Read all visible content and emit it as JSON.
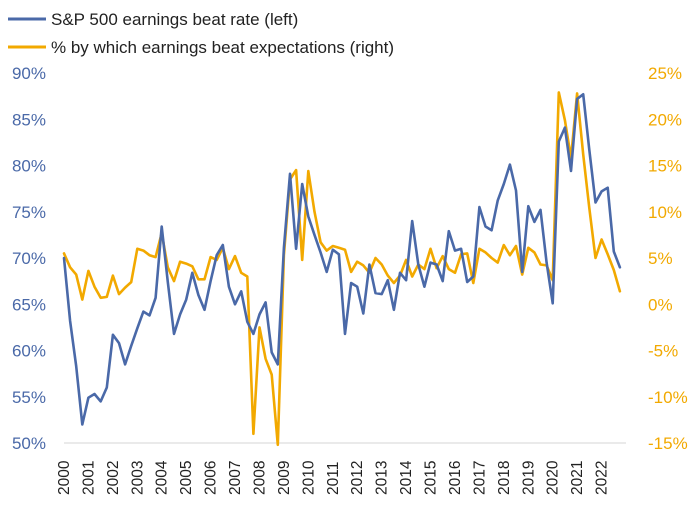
{
  "chart_data": {
    "type": "line",
    "x_labels": [
      "2000",
      "2001",
      "2002",
      "2003",
      "2004",
      "2005",
      "2006",
      "2007",
      "2008",
      "2009",
      "2010",
      "2011",
      "2012",
      "2013",
      "2014",
      "2015",
      "2016",
      "2017",
      "2018",
      "2019",
      "2020",
      "2021",
      "2022"
    ],
    "x_range": [
      2000,
      2023
    ],
    "y_left": {
      "ticks": [
        "90%",
        "85%",
        "80%",
        "75%",
        "70%",
        "65%",
        "60%",
        "55%",
        "50%"
      ],
      "range": [
        50,
        90
      ]
    },
    "y_right": {
      "ticks": [
        "25%",
        "20%",
        "15%",
        "10%",
        "5%",
        "0%",
        "-5%",
        "-10%",
        "-15%"
      ],
      "range": [
        -15,
        25
      ]
    },
    "grid": false,
    "legend_position": "top-left",
    "series": [
      {
        "name": "S&P 500 earnings beat rate (left)",
        "axis": "left",
        "color": "#4A69A8",
        "points": [
          [
            2000.0,
            70.0
          ],
          [
            2000.25,
            63.2
          ],
          [
            2000.5,
            58.3
          ],
          [
            2000.75,
            52.0
          ],
          [
            2001.0,
            54.9
          ],
          [
            2001.25,
            55.3
          ],
          [
            2001.5,
            54.5
          ],
          [
            2001.75,
            56.0
          ],
          [
            2002.0,
            61.7
          ],
          [
            2002.25,
            60.8
          ],
          [
            2002.5,
            58.5
          ],
          [
            2002.75,
            60.5
          ],
          [
            2003.0,
            62.4
          ],
          [
            2003.25,
            64.2
          ],
          [
            2003.5,
            63.8
          ],
          [
            2003.75,
            65.7
          ],
          [
            2004.0,
            73.4
          ],
          [
            2004.25,
            67.4
          ],
          [
            2004.5,
            61.8
          ],
          [
            2004.75,
            63.9
          ],
          [
            2005.0,
            65.5
          ],
          [
            2005.25,
            68.4
          ],
          [
            2005.5,
            66.0
          ],
          [
            2005.75,
            64.4
          ],
          [
            2006.0,
            67.5
          ],
          [
            2006.25,
            70.3
          ],
          [
            2006.5,
            71.4
          ],
          [
            2006.75,
            66.9
          ],
          [
            2007.0,
            65.0
          ],
          [
            2007.25,
            66.4
          ],
          [
            2007.5,
            63.1
          ],
          [
            2007.75,
            61.8
          ],
          [
            2008.0,
            63.9
          ],
          [
            2008.25,
            65.2
          ],
          [
            2008.5,
            59.8
          ],
          [
            2008.75,
            58.5
          ],
          [
            2009.0,
            71.1
          ],
          [
            2009.25,
            79.1
          ],
          [
            2009.5,
            71.0
          ],
          [
            2009.75,
            78.0
          ],
          [
            2010.0,
            74.5
          ],
          [
            2010.25,
            72.5
          ],
          [
            2010.5,
            70.6
          ],
          [
            2010.75,
            68.5
          ],
          [
            2011.0,
            70.9
          ],
          [
            2011.25,
            70.4
          ],
          [
            2011.5,
            61.8
          ],
          [
            2011.75,
            67.3
          ],
          [
            2012.0,
            66.9
          ],
          [
            2012.25,
            64.0
          ],
          [
            2012.5,
            69.3
          ],
          [
            2012.75,
            66.2
          ],
          [
            2013.0,
            66.1
          ],
          [
            2013.25,
            67.6
          ],
          [
            2013.5,
            64.4
          ],
          [
            2013.75,
            68.4
          ],
          [
            2014.0,
            67.6
          ],
          [
            2014.25,
            74.0
          ],
          [
            2014.5,
            69.3
          ],
          [
            2014.75,
            66.9
          ],
          [
            2015.0,
            69.5
          ],
          [
            2015.25,
            69.3
          ],
          [
            2015.5,
            67.5
          ],
          [
            2015.75,
            72.9
          ],
          [
            2016.0,
            70.8
          ],
          [
            2016.25,
            71.0
          ],
          [
            2016.5,
            67.4
          ],
          [
            2016.75,
            68.0
          ],
          [
            2017.0,
            75.5
          ],
          [
            2017.25,
            73.4
          ],
          [
            2017.5,
            73.0
          ],
          [
            2017.75,
            76.2
          ],
          [
            2018.0,
            78.0
          ],
          [
            2018.25,
            80.1
          ],
          [
            2018.5,
            77.3
          ],
          [
            2018.75,
            68.5
          ],
          [
            2019.0,
            75.6
          ],
          [
            2019.25,
            73.9
          ],
          [
            2019.5,
            75.2
          ],
          [
            2019.75,
            69.5
          ],
          [
            2020.0,
            65.1
          ],
          [
            2020.25,
            82.6
          ],
          [
            2020.5,
            84.1
          ],
          [
            2020.75,
            79.4
          ],
          [
            2021.0,
            87.2
          ],
          [
            2021.25,
            87.7
          ],
          [
            2021.5,
            81.7
          ],
          [
            2021.75,
            76.0
          ],
          [
            2022.0,
            77.2
          ],
          [
            2022.25,
            77.6
          ],
          [
            2022.5,
            70.7
          ],
          [
            2022.75,
            69.0
          ]
        ]
      },
      {
        "name": "% by which earnings beat expectations (right)",
        "axis": "right",
        "color": "#F2A900",
        "points": [
          [
            2000.0,
            5.5
          ],
          [
            2000.25,
            4.0
          ],
          [
            2000.5,
            3.2
          ],
          [
            2000.75,
            0.5
          ],
          [
            2001.0,
            3.6
          ],
          [
            2001.25,
            1.9
          ],
          [
            2001.5,
            0.7
          ],
          [
            2001.75,
            0.8
          ],
          [
            2002.0,
            3.1
          ],
          [
            2002.25,
            1.1
          ],
          [
            2002.5,
            1.8
          ],
          [
            2002.75,
            2.4
          ],
          [
            2003.0,
            6.0
          ],
          [
            2003.25,
            5.8
          ],
          [
            2003.5,
            5.3
          ],
          [
            2003.75,
            5.1
          ],
          [
            2004.0,
            7.7
          ],
          [
            2004.25,
            4.0
          ],
          [
            2004.5,
            2.5
          ],
          [
            2004.75,
            4.6
          ],
          [
            2005.0,
            4.4
          ],
          [
            2005.25,
            4.1
          ],
          [
            2005.5,
            2.7
          ],
          [
            2005.75,
            2.7
          ],
          [
            2006.0,
            5.1
          ],
          [
            2006.25,
            4.8
          ],
          [
            2006.5,
            6.1
          ],
          [
            2006.75,
            3.8
          ],
          [
            2007.0,
            5.2
          ],
          [
            2007.25,
            3.4
          ],
          [
            2007.5,
            3.0
          ],
          [
            2007.75,
            -14.0
          ],
          [
            2008.0,
            -2.5
          ],
          [
            2008.25,
            -5.9
          ],
          [
            2008.5,
            -7.6
          ],
          [
            2008.75,
            -15.2
          ],
          [
            2009.0,
            5.3
          ],
          [
            2009.25,
            13.5
          ],
          [
            2009.5,
            14.5
          ],
          [
            2009.75,
            4.8
          ],
          [
            2010.0,
            14.4
          ],
          [
            2010.25,
            10.0
          ],
          [
            2010.5,
            6.7
          ],
          [
            2010.75,
            5.8
          ],
          [
            2011.0,
            6.3
          ],
          [
            2011.25,
            6.1
          ],
          [
            2011.5,
            5.9
          ],
          [
            2011.75,
            3.5
          ],
          [
            2012.0,
            4.6
          ],
          [
            2012.25,
            4.2
          ],
          [
            2012.5,
            3.4
          ],
          [
            2012.75,
            5.0
          ],
          [
            2013.0,
            4.3
          ],
          [
            2013.25,
            3.1
          ],
          [
            2013.5,
            2.3
          ],
          [
            2013.75,
            3.1
          ],
          [
            2014.0,
            4.8
          ],
          [
            2014.25,
            3.0
          ],
          [
            2014.5,
            4.3
          ],
          [
            2014.75,
            3.8
          ],
          [
            2015.0,
            6.0
          ],
          [
            2015.25,
            3.9
          ],
          [
            2015.5,
            5.2
          ],
          [
            2015.75,
            3.8
          ],
          [
            2016.0,
            3.4
          ],
          [
            2016.25,
            5.4
          ],
          [
            2016.5,
            5.5
          ],
          [
            2016.75,
            2.3
          ],
          [
            2017.0,
            6.0
          ],
          [
            2017.25,
            5.6
          ],
          [
            2017.5,
            5.0
          ],
          [
            2017.75,
            4.5
          ],
          [
            2018.0,
            6.4
          ],
          [
            2018.25,
            5.3
          ],
          [
            2018.5,
            6.3
          ],
          [
            2018.75,
            3.2
          ],
          [
            2019.0,
            6.1
          ],
          [
            2019.25,
            5.6
          ],
          [
            2019.5,
            4.3
          ],
          [
            2019.75,
            4.2
          ],
          [
            2020.0,
            2.6
          ],
          [
            2020.25,
            22.9
          ],
          [
            2020.5,
            19.9
          ],
          [
            2020.75,
            15.8
          ],
          [
            2021.0,
            22.8
          ],
          [
            2021.25,
            16.2
          ],
          [
            2021.5,
            10.4
          ],
          [
            2021.75,
            5.0
          ],
          [
            2022.0,
            7.0
          ],
          [
            2022.25,
            5.4
          ],
          [
            2022.5,
            3.7
          ],
          [
            2022.75,
            1.4
          ]
        ]
      }
    ]
  }
}
